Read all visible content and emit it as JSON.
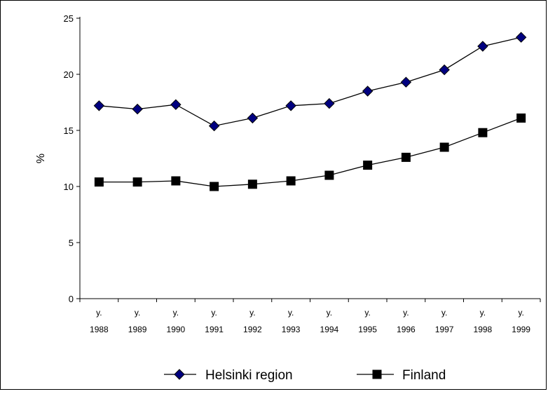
{
  "chart_data": {
    "type": "line",
    "title": "",
    "xlabel": "",
    "ylabel": "%",
    "ylim": [
      0,
      25
    ],
    "yticks": [
      0,
      5,
      10,
      15,
      20,
      25
    ],
    "categories": [
      {
        "top": "y.",
        "bottom": "1988"
      },
      {
        "top": "y.",
        "bottom": "1989"
      },
      {
        "top": "y.",
        "bottom": "1990"
      },
      {
        "top": "y.",
        "bottom": "1991"
      },
      {
        "top": "y.",
        "bottom": "1992"
      },
      {
        "top": "y.",
        "bottom": "1993"
      },
      {
        "top": "y.",
        "bottom": "1994"
      },
      {
        "top": "y.",
        "bottom": "1995"
      },
      {
        "top": "y.",
        "bottom": "1996"
      },
      {
        "top": "y.",
        "bottom": "1997"
      },
      {
        "top": "y.",
        "bottom": "1998"
      },
      {
        "top": "y.",
        "bottom": "1999"
      }
    ],
    "series": [
      {
        "name": "Helsinki region",
        "marker": "diamond",
        "color": "#000080",
        "values": [
          17.2,
          16.9,
          17.3,
          15.4,
          16.1,
          17.2,
          17.4,
          18.5,
          19.3,
          20.4,
          22.5,
          23.3
        ]
      },
      {
        "name": "Finland",
        "marker": "square",
        "color": "#000000",
        "values": [
          10.4,
          10.4,
          10.5,
          10.0,
          10.2,
          10.5,
          11.0,
          11.9,
          12.6,
          13.5,
          14.8,
          16.1
        ]
      }
    ],
    "grid": false,
    "legend_position": "bottom"
  }
}
